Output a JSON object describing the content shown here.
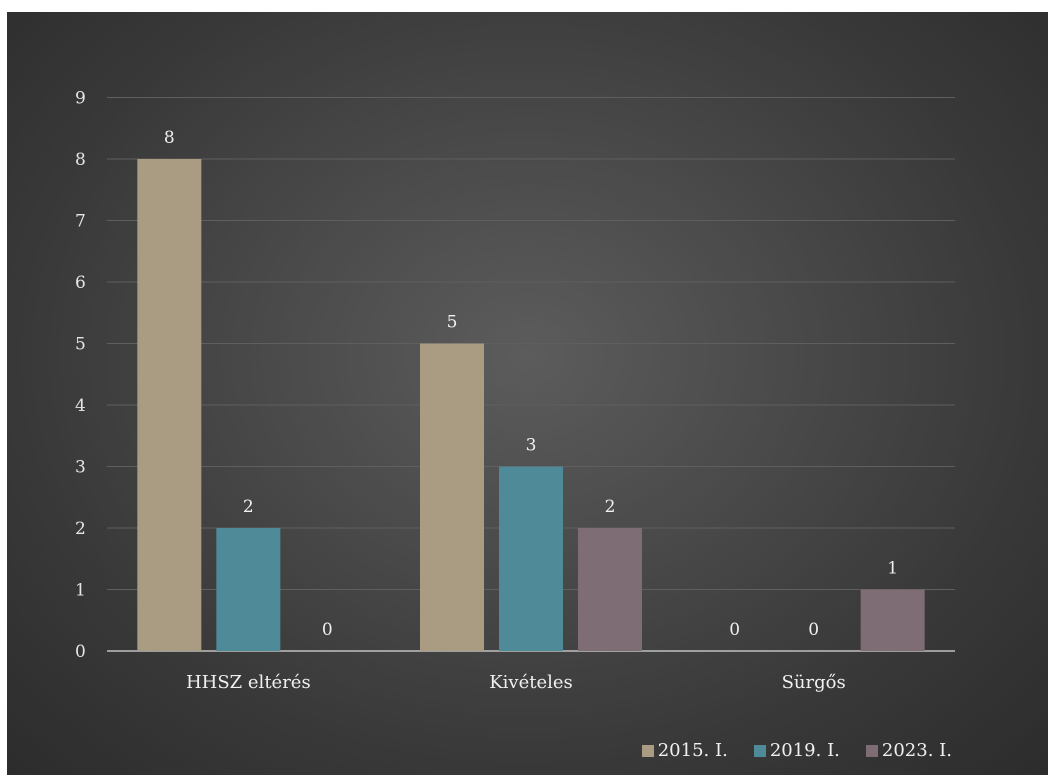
{
  "chart_data": {
    "type": "bar",
    "categories": [
      "HHSZ eltérés",
      "Kivételes",
      "Sürgős"
    ],
    "series": [
      {
        "name": "2015. I.",
        "values": [
          8,
          5,
          0
        ],
        "color": "#a99c82"
      },
      {
        "name": "2019. I.",
        "values": [
          2,
          3,
          0
        ],
        "color": "#4f8a99"
      },
      {
        "name": "2023. I.",
        "values": [
          0,
          2,
          1
        ],
        "color": "#7f6d76"
      }
    ],
    "yticks": [
      "0",
      "1",
      "2",
      "3",
      "4",
      "5",
      "6",
      "7",
      "8",
      "9"
    ],
    "ylim": [
      0,
      9
    ],
    "grid": true,
    "legend": "bottom-right",
    "background": "#3f3f3f"
  }
}
